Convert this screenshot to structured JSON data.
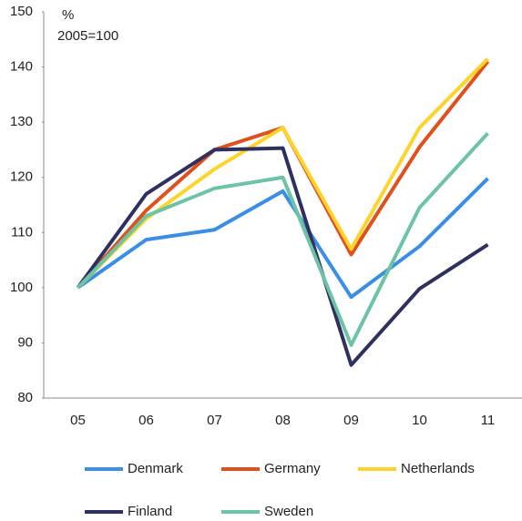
{
  "chart_data": {
    "type": "line",
    "annotations": [
      "%",
      "2005=100"
    ],
    "categories": [
      "05",
      "06",
      "07",
      "08",
      "09",
      "10",
      "11"
    ],
    "series": [
      {
        "name": "Denmark",
        "color": "#3b8ee8",
        "values": [
          100,
          108.7,
          110.5,
          117.5,
          98.3,
          107.5,
          119.8
        ]
      },
      {
        "name": "Germany",
        "color": "#e0501c",
        "values": [
          100,
          114,
          125,
          129,
          106,
          125.5,
          141
        ]
      },
      {
        "name": "Netherlands",
        "color": "#ffd42a",
        "values": [
          100,
          112.5,
          121.5,
          129,
          107,
          129,
          141.5
        ]
      },
      {
        "name": "Finland",
        "color": "#2e3160",
        "values": [
          100,
          117,
          125,
          125.3,
          86,
          99.8,
          107.8
        ]
      },
      {
        "name": "Sweden",
        "color": "#6cc4a4",
        "values": [
          100,
          113,
          118,
          120,
          89.6,
          114.5,
          128
        ]
      }
    ],
    "ylim": [
      80,
      150
    ],
    "yticks": [
      80,
      90,
      100,
      110,
      120,
      130,
      140,
      150
    ],
    "grid": false,
    "legend": "bottom"
  }
}
